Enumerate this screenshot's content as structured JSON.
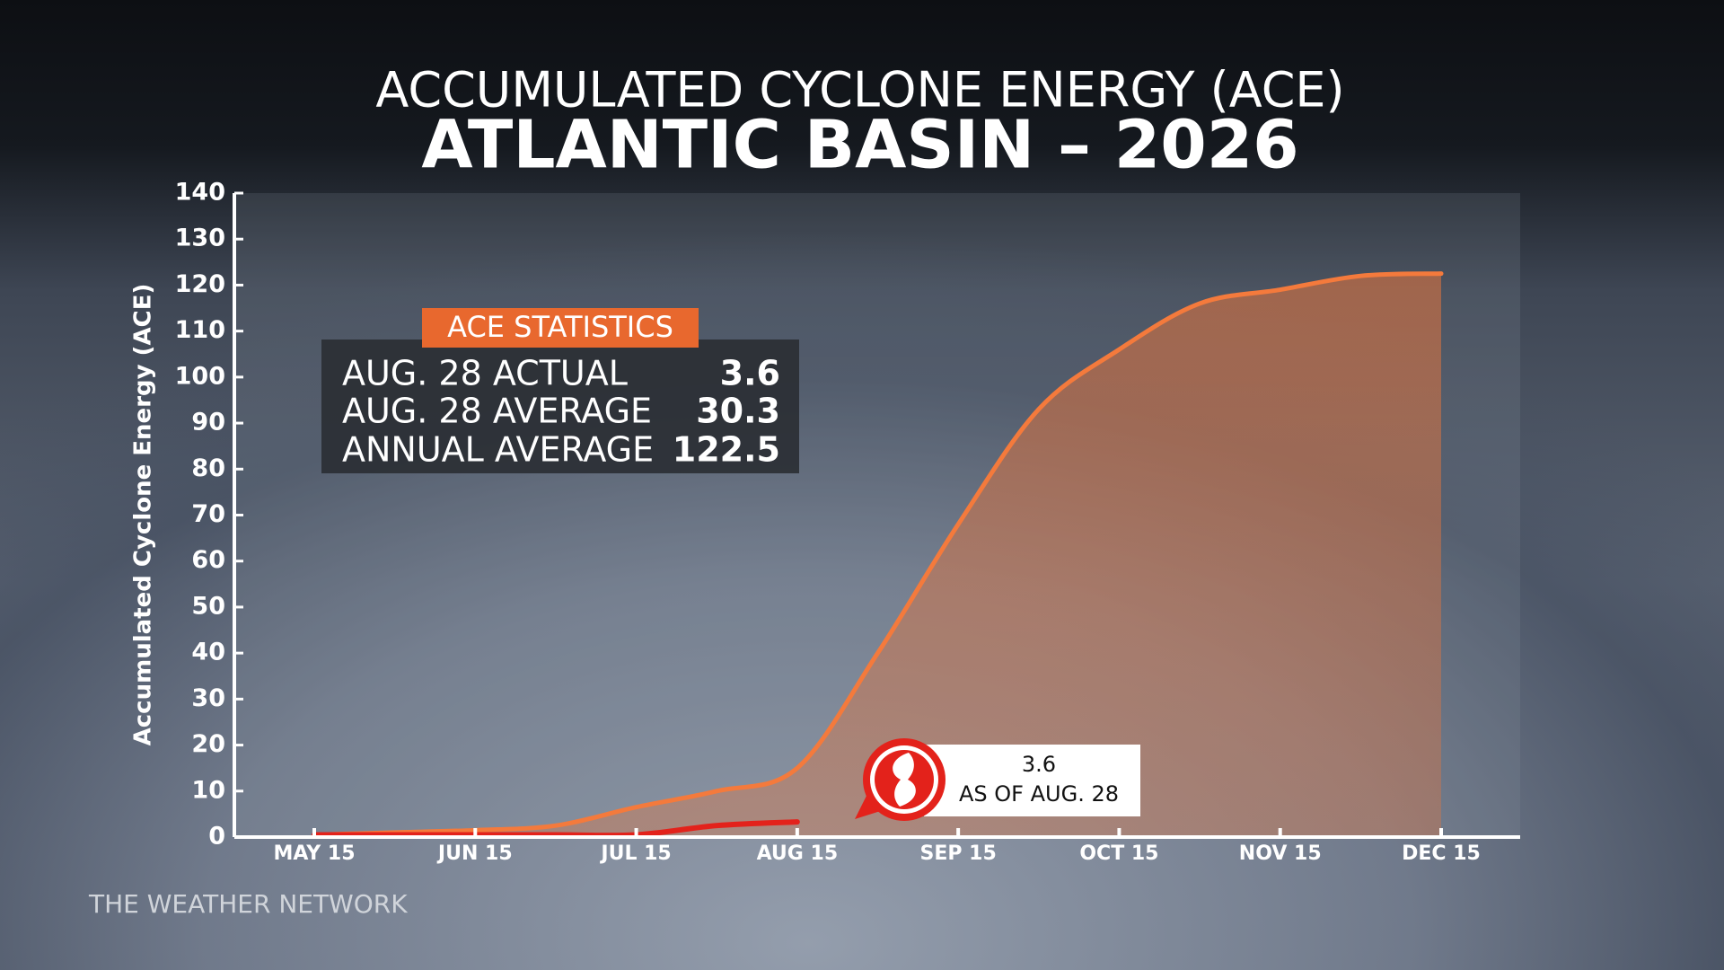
{
  "chart_data": {
    "type": "area-line",
    "title": "ACCUMULATED CYCLONE ENERGY (ACE)",
    "subtitle": "ATLANTIC BASIN – 2026",
    "y_label": "Accumulated Cyclone Energy (ACE)",
    "categories": [
      "MAY 15",
      null,
      "JUN 15",
      null,
      "JUL 15",
      null,
      "AUG 15",
      null,
      "SEP 15",
      null,
      "OCT 15",
      null,
      "NOV 15",
      null,
      "DEC 15"
    ],
    "series": [
      {
        "color": "#f47a3c",
        "values": [
          0.5,
          1,
          1.5,
          2.5,
          6.5,
          10,
          15,
          40,
          68,
          93,
          106,
          116,
          119,
          122,
          122.5
        ]
      },
      {
        "color": "#e3221b",
        "values": [
          0.5,
          0.5,
          0.5,
          0.5,
          0.5,
          2.5,
          3.3,
          null,
          null,
          null,
          null,
          null,
          null,
          null,
          null
        ]
      }
    ],
    "ylim": [
      0,
      140
    ],
    "yticks": [
      0,
      10,
      20,
      30,
      40,
      50,
      60,
      70,
      80,
      90,
      100,
      110,
      120,
      130,
      140
    ],
    "annotation": {
      "value": 3.6,
      "text": "AS OF AUG. 28"
    }
  },
  "stats": {
    "title": "ACE STATISTICS",
    "rows": [
      {
        "label": "AUG. 28 ACTUAL",
        "value": 3.6
      },
      {
        "label": "AUG. 28 AVERAGE",
        "value": 30.3
      },
      {
        "label": "ANNUAL AVERAGE",
        "value": 122.5
      }
    ]
  },
  "footer": "THE WEATHER NETWORK"
}
